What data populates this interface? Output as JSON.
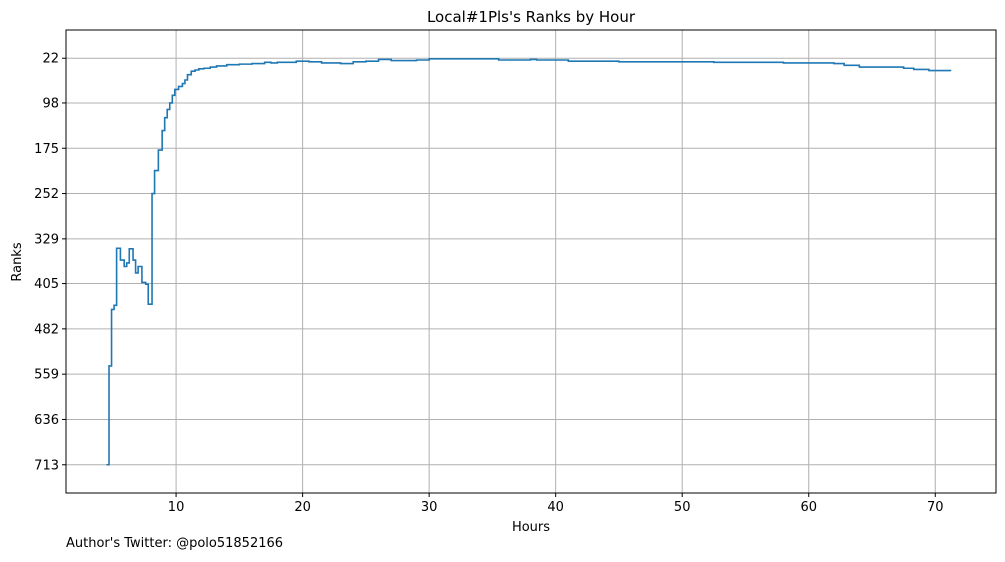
{
  "chart_data": {
    "type": "line",
    "title": "Local#1Pls's Ranks by Hour",
    "xlabel": "Hours",
    "ylabel": "Ranks",
    "xlim": [
      1.3,
      74.8
    ],
    "ylim": [
      761,
      -26
    ],
    "y_inverted": true,
    "x_ticks": [
      10,
      20,
      30,
      40,
      50,
      60,
      70
    ],
    "y_ticks": [
      22,
      98,
      175,
      252,
      329,
      405,
      482,
      559,
      636,
      713
    ],
    "grid": true,
    "step": "post",
    "series": [
      {
        "color": "#1f77b4",
        "points": [
          [
            4.5,
            713
          ],
          [
            4.7,
            545
          ],
          [
            4.9,
            449
          ],
          [
            5.1,
            442
          ],
          [
            5.3,
            345
          ],
          [
            5.6,
            365
          ],
          [
            5.9,
            376
          ],
          [
            6.1,
            370
          ],
          [
            6.3,
            346
          ],
          [
            6.6,
            365
          ],
          [
            6.8,
            387
          ],
          [
            7.0,
            376
          ],
          [
            7.3,
            403
          ],
          [
            7.6,
            406
          ],
          [
            7.8,
            440
          ],
          [
            8.1,
            252
          ],
          [
            8.3,
            213
          ],
          [
            8.6,
            178
          ],
          [
            8.9,
            145
          ],
          [
            9.1,
            123
          ],
          [
            9.3,
            109
          ],
          [
            9.5,
            98
          ],
          [
            9.7,
            85
          ],
          [
            9.9,
            75
          ],
          [
            10.2,
            70
          ],
          [
            10.5,
            65
          ],
          [
            10.7,
            59
          ],
          [
            10.9,
            50
          ],
          [
            11.2,
            44
          ],
          [
            11.5,
            42
          ],
          [
            11.8,
            40
          ],
          [
            12.2,
            39
          ],
          [
            12.7,
            37
          ],
          [
            13.2,
            35
          ],
          [
            14.0,
            33
          ],
          [
            15.0,
            32
          ],
          [
            16.0,
            31
          ],
          [
            17.0,
            29
          ],
          [
            17.5,
            30
          ],
          [
            18.0,
            29
          ],
          [
            19.5,
            27
          ],
          [
            20.5,
            28
          ],
          [
            21.5,
            30
          ],
          [
            23.0,
            31
          ],
          [
            24.0,
            28
          ],
          [
            25.0,
            27
          ],
          [
            26.0,
            24
          ],
          [
            27.0,
            26
          ],
          [
            29.0,
            25
          ],
          [
            30.0,
            23
          ],
          [
            35.0,
            23
          ],
          [
            35.5,
            25
          ],
          [
            38.0,
            24
          ],
          [
            38.5,
            25
          ],
          [
            41.0,
            27
          ],
          [
            45.0,
            28
          ],
          [
            52.5,
            29
          ],
          [
            58.0,
            30
          ],
          [
            62.0,
            31
          ],
          [
            62.8,
            34
          ],
          [
            64.0,
            37
          ],
          [
            67.5,
            39
          ],
          [
            68.3,
            41
          ],
          [
            69.5,
            43
          ],
          [
            71.2,
            44
          ]
        ]
      }
    ]
  },
  "footer": "Author's Twitter: @polo51852166"
}
